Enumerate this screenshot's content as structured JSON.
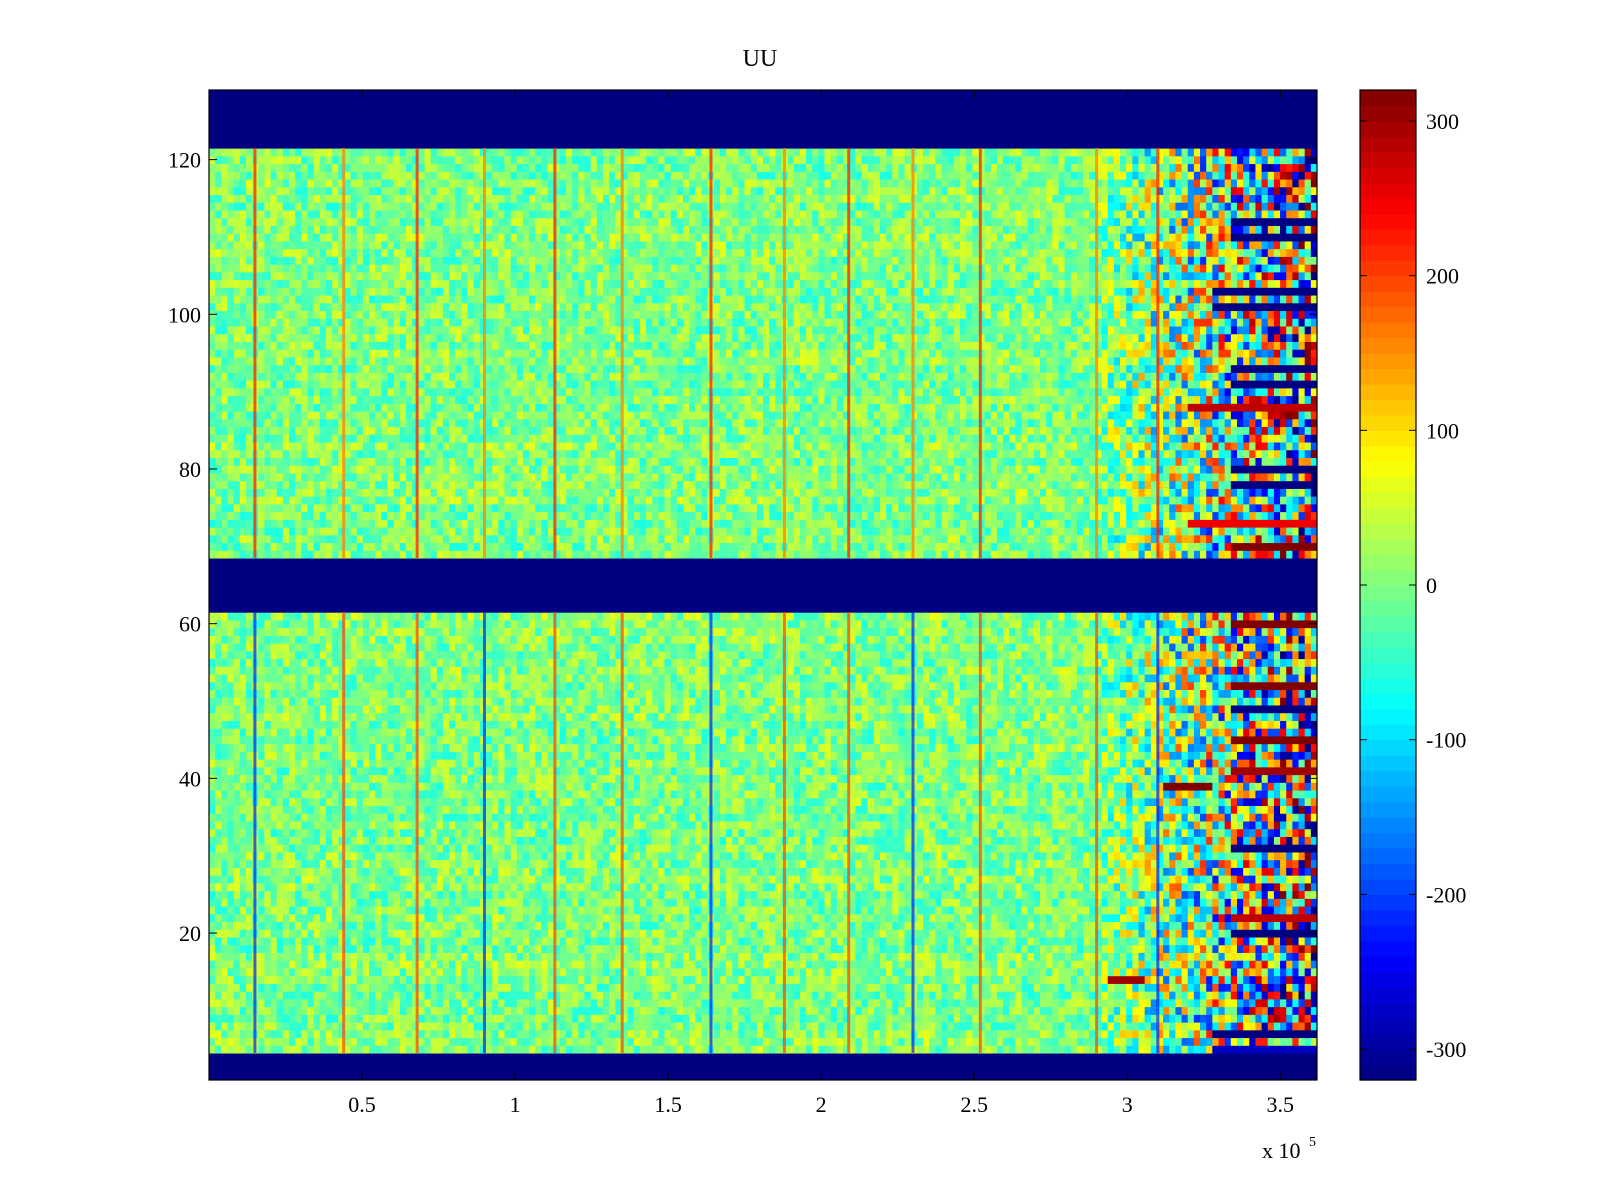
{
  "chart_data": {
    "type": "heatmap",
    "title": "UU",
    "xlabel": "",
    "ylabel": "",
    "x_multiplier_label": "x 10",
    "x_multiplier_exponent": "5",
    "xlim": [
      0,
      3.62
    ],
    "ylim": [
      1,
      129
    ],
    "x_ticks": [
      0.5,
      1,
      1.5,
      2,
      2.5,
      3,
      3.5
    ],
    "x_tick_labels": [
      "0.5",
      "1",
      "1.5",
      "2",
      "2.5",
      "3",
      "3.5"
    ],
    "y_ticks": [
      20,
      40,
      60,
      80,
      100,
      120
    ],
    "y_tick_labels": [
      "20",
      "40",
      "60",
      "80",
      "100",
      "120"
    ],
    "colorbar": {
      "colormap": "jet",
      "range": [
        -320,
        320
      ],
      "ticks": [
        300,
        200,
        100,
        0,
        -100,
        -200,
        -300
      ],
      "tick_labels": [
        "300",
        "200",
        "100",
        "0",
        "-100",
        "-200",
        "-300"
      ]
    },
    "constant_bands": [
      {
        "y_range": [
          1,
          4
        ],
        "value": -320
      },
      {
        "y_range": [
          62,
          68
        ],
        "value": -320
      },
      {
        "y_range": [
          122,
          129
        ],
        "value": -320
      }
    ],
    "periodic_spike_x": [
      0.15,
      0.44,
      0.68,
      0.9,
      1.13,
      1.35,
      1.64,
      1.88,
      2.09,
      2.3,
      2.52,
      2.9,
      3.1
    ],
    "background_value_range": [
      -60,
      60
    ],
    "unstable_region_x_start": 2.9,
    "saturated_rows": [
      {
        "y": 70,
        "x_start": 3.33,
        "value": 320
      },
      {
        "y": 73,
        "x_start": 3.2,
        "value": 250
      },
      {
        "y": 78,
        "x_start": 3.33,
        "value": -320
      },
      {
        "y": 80,
        "x_start": 3.33,
        "value": -320
      },
      {
        "y": 88,
        "x_start": 3.2,
        "value": 280
      },
      {
        "y": 91,
        "x_start": 3.33,
        "value": -320
      },
      {
        "y": 93,
        "x_start": 3.33,
        "value": -320
      },
      {
        "y": 101,
        "x_start": 3.28,
        "value": -320
      },
      {
        "y": 103,
        "x_start": 3.28,
        "value": -320
      },
      {
        "y": 110,
        "x_start": 3.33,
        "value": -320
      },
      {
        "y": 112,
        "x_start": 3.33,
        "value": -320
      },
      {
        "y": 60,
        "x_start": 3.33,
        "value": 320
      },
      {
        "y": 52,
        "x_start": 3.33,
        "value": 320
      },
      {
        "y": 49,
        "x_start": 3.33,
        "value": -320
      },
      {
        "y": 45,
        "x_start": 3.33,
        "value": 320
      },
      {
        "y": 41,
        "x_start": 3.33,
        "value": 300
      },
      {
        "y": 39,
        "x_start": 3.12,
        "x_end": 3.28,
        "value": 320
      },
      {
        "y": 31,
        "x_start": 3.33,
        "value": -320
      },
      {
        "y": 22,
        "x_start": 3.33,
        "value": 280
      },
      {
        "y": 20,
        "x_start": 3.33,
        "value": -320
      },
      {
        "y": 14,
        "x_start": 2.93,
        "x_end": 3.05,
        "value": 300
      },
      {
        "y": 7,
        "x_start": 3.28,
        "value": -320
      },
      {
        "y": 5,
        "x_start": 3.28,
        "value": -280
      }
    ]
  }
}
